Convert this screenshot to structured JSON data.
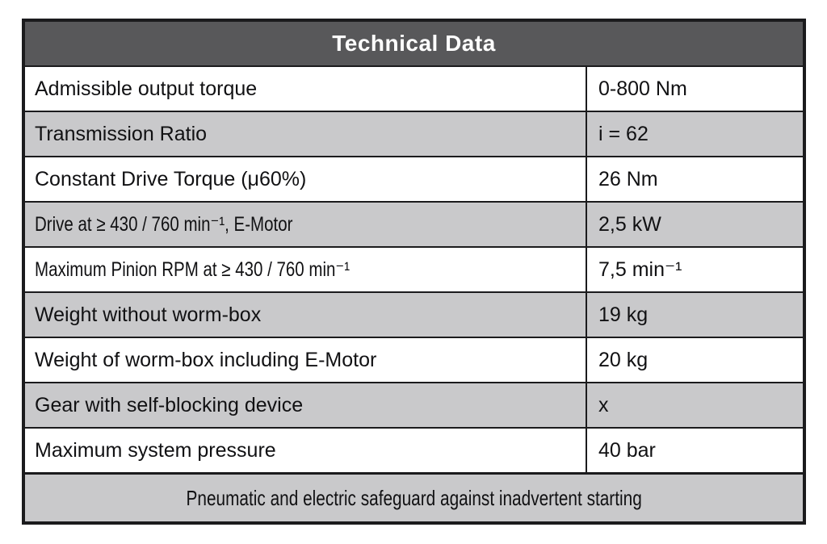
{
  "table": {
    "title": "Technical Data",
    "rows": [
      {
        "label": "Admissible output torque",
        "value": "0-800 Nm"
      },
      {
        "label": "Transmission Ratio",
        "value": "i = 62"
      },
      {
        "label": "Constant Drive Torque (μ60%)",
        "value": "26 Nm"
      },
      {
        "label": "Drive at ≥ 430 / 760 min⁻¹, E-Motor",
        "value": "2,5 kW"
      },
      {
        "label": "Maximum Pinion RPM at ≥ 430 / 760 min⁻¹",
        "value": "7,5 min⁻¹"
      },
      {
        "label": "Weight without worm-box",
        "value": "19 kg"
      },
      {
        "label": "Weight of worm-box including E-Motor",
        "value": "20 kg"
      },
      {
        "label": "Gear with self-blocking device",
        "value": "x"
      },
      {
        "label": "Maximum system pressure",
        "value": "40 bar"
      }
    ],
    "footer": "Pneumatic and electric safeguard against inadvertent starting",
    "colors": {
      "header_bg": "#58585a",
      "header_text": "#ffffff",
      "row_bg": "#ffffff",
      "row_alt_bg": "#c9c9cb",
      "border": "#1b1b1d"
    }
  }
}
